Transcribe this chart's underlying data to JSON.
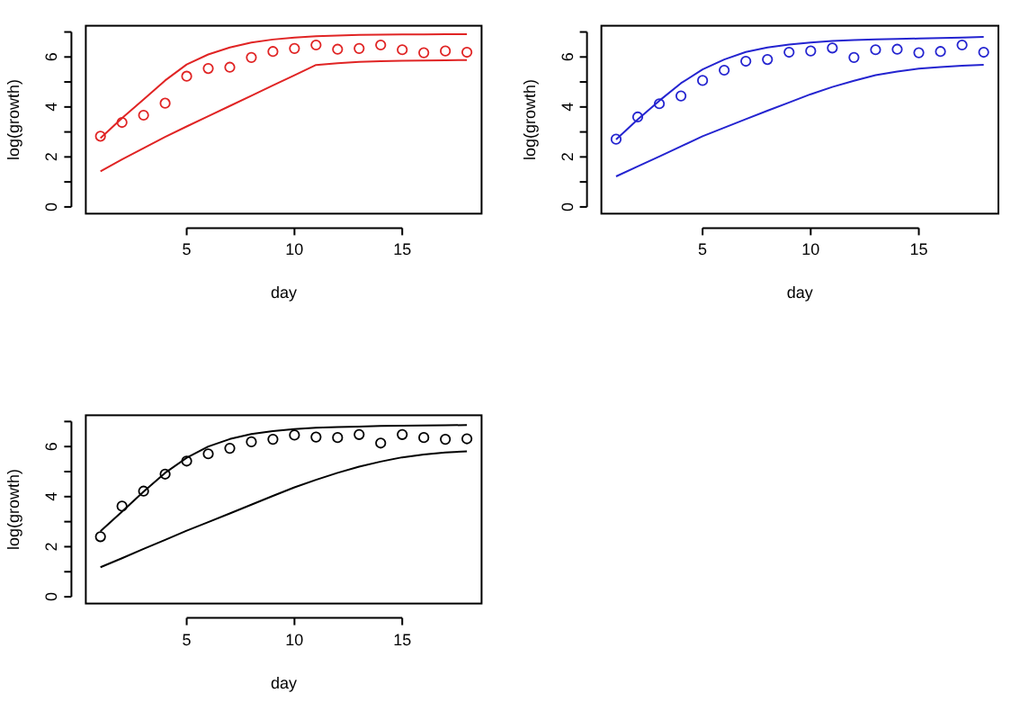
{
  "chart_data": [
    {
      "type": "scatter",
      "xlabel": "day",
      "ylabel": "log(growth)",
      "xlim": [
        0.32,
        18.68
      ],
      "ylim": [
        -0.27,
        7.25
      ],
      "xticks": [
        5,
        10,
        15
      ],
      "yticks": [
        0,
        {
          "value": 1,
          "label": null
        },
        2,
        {
          "value": 3,
          "label": null
        },
        4,
        {
          "value": 5,
          "label": null
        },
        6,
        {
          "value": 7,
          "label": null
        }
      ],
      "x": [
        1,
        2,
        3,
        4,
        5,
        6,
        7,
        8,
        9,
        10,
        11,
        12,
        13,
        14,
        15,
        16,
        17,
        18
      ],
      "series": [
        {
          "marker": "circle",
          "color": "#e02424",
          "values": [
            2.83,
            3.38,
            3.67,
            4.15,
            5.23,
            5.54,
            5.59,
            5.98,
            6.22,
            6.34,
            6.48,
            6.31,
            6.34,
            6.48,
            6.29,
            6.17,
            6.24,
            6.19
          ]
        },
        {
          "type": "line",
          "color": "#e02424",
          "values": [
            2.75,
            3.55,
            4.3,
            5.06,
            5.7,
            6.1,
            6.38,
            6.58,
            6.7,
            6.78,
            6.83,
            6.86,
            6.88,
            6.89,
            6.9,
            6.9,
            6.91,
            6.91
          ]
        },
        {
          "type": "line",
          "color": "#e02424",
          "values": [
            1.42,
            1.9,
            2.35,
            2.8,
            3.22,
            3.63,
            4.04,
            4.45,
            4.86,
            5.27,
            5.68,
            5.75,
            5.8,
            5.83,
            5.85,
            5.86,
            5.87,
            5.88
          ]
        }
      ]
    },
    {
      "type": "scatter",
      "xlabel": "day",
      "ylabel": "log(growth)",
      "xlim": [
        0.32,
        18.68
      ],
      "ylim": [
        -0.27,
        7.25
      ],
      "xticks": [
        5,
        10,
        15
      ],
      "yticks": [
        0,
        {
          "value": 1,
          "label": null
        },
        2,
        {
          "value": 3,
          "label": null
        },
        4,
        {
          "value": 5,
          "label": null
        },
        6,
        {
          "value": 7,
          "label": null
        }
      ],
      "x": [
        1,
        2,
        3,
        4,
        5,
        6,
        7,
        8,
        9,
        10,
        11,
        12,
        13,
        14,
        15,
        16,
        17,
        18
      ],
      "series": [
        {
          "marker": "circle",
          "color": "#2424d0",
          "values": [
            2.71,
            3.6,
            4.13,
            4.44,
            5.06,
            5.47,
            5.83,
            5.9,
            6.19,
            6.24,
            6.36,
            5.98,
            6.29,
            6.31,
            6.17,
            6.22,
            6.48,
            6.19
          ]
        },
        {
          "type": "line",
          "color": "#2424d0",
          "values": [
            2.7,
            3.5,
            4.25,
            4.95,
            5.5,
            5.9,
            6.2,
            6.38,
            6.5,
            6.58,
            6.64,
            6.68,
            6.7,
            6.72,
            6.74,
            6.76,
            6.78,
            6.8
          ]
        },
        {
          "type": "line",
          "color": "#2424d0",
          "values": [
            1.22,
            1.62,
            2.02,
            2.42,
            2.83,
            3.17,
            3.51,
            3.85,
            4.18,
            4.51,
            4.8,
            5.05,
            5.27,
            5.42,
            5.53,
            5.6,
            5.65,
            5.69
          ]
        }
      ]
    },
    {
      "type": "scatter",
      "xlabel": "day",
      "ylabel": "log(growth)",
      "xlim": [
        0.32,
        18.68
      ],
      "ylim": [
        -0.27,
        7.25
      ],
      "xticks": [
        5,
        10,
        15
      ],
      "yticks": [
        0,
        {
          "value": 1,
          "label": null
        },
        2,
        {
          "value": 3,
          "label": null
        },
        4,
        {
          "value": 5,
          "label": null
        },
        6,
        {
          "value": 7,
          "label": null
        }
      ],
      "x": [
        1,
        2,
        3,
        4,
        5,
        6,
        7,
        8,
        9,
        10,
        11,
        12,
        13,
        14,
        15,
        16,
        17,
        18
      ],
      "series": [
        {
          "marker": "circle",
          "color": "#000000",
          "values": [
            2.4,
            3.62,
            4.22,
            4.9,
            5.42,
            5.71,
            5.93,
            6.19,
            6.29,
            6.46,
            6.38,
            6.36,
            6.48,
            6.14,
            6.48,
            6.36,
            6.29,
            6.31
          ]
        },
        {
          "type": "line",
          "color": "#000000",
          "values": [
            2.62,
            3.4,
            4.2,
            4.95,
            5.55,
            6.0,
            6.3,
            6.5,
            6.62,
            6.7,
            6.75,
            6.78,
            6.8,
            6.82,
            6.83,
            6.84,
            6.85,
            6.86
          ]
        },
        {
          "type": "line",
          "color": "#000000",
          "values": [
            1.18,
            1.54,
            1.91,
            2.27,
            2.64,
            2.98,
            3.33,
            3.68,
            4.03,
            4.37,
            4.67,
            4.95,
            5.2,
            5.4,
            5.57,
            5.68,
            5.76,
            5.81
          ]
        }
      ]
    }
  ]
}
